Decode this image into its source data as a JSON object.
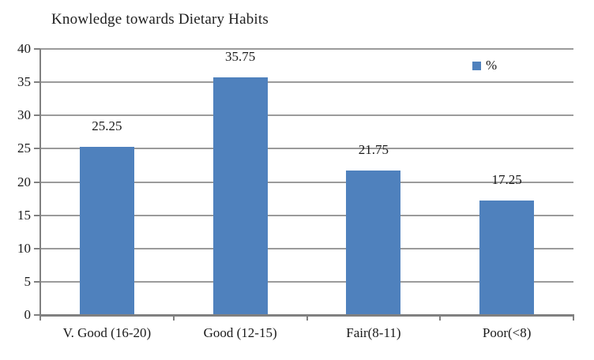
{
  "chart_data": {
    "type": "bar",
    "title": "Knowledge towards Dietary Habits",
    "categories": [
      "V. Good (16-20)",
      "Good (12-15)",
      "Fair(8-11)",
      "Poor(<8)"
    ],
    "series": [
      {
        "name": "%",
        "values": [
          25.25,
          35.75,
          21.75,
          17.25
        ]
      }
    ],
    "data_labels": [
      "25.25",
      "35.75",
      "21.75",
      "17.25"
    ],
    "xlabel": "",
    "ylabel": "",
    "ylim": [
      0,
      40
    ],
    "yticks": [
      0,
      5,
      10,
      15,
      20,
      25,
      30,
      35,
      40
    ],
    "grid": "horizontal",
    "legend": {
      "label": "%",
      "position": "upper-right-inside"
    },
    "colors": {
      "bar": "#4f81bd",
      "gridline": "#9b9b9b",
      "axis": "#808080",
      "text": "#1a1a1a",
      "background": "#ffffff"
    }
  }
}
